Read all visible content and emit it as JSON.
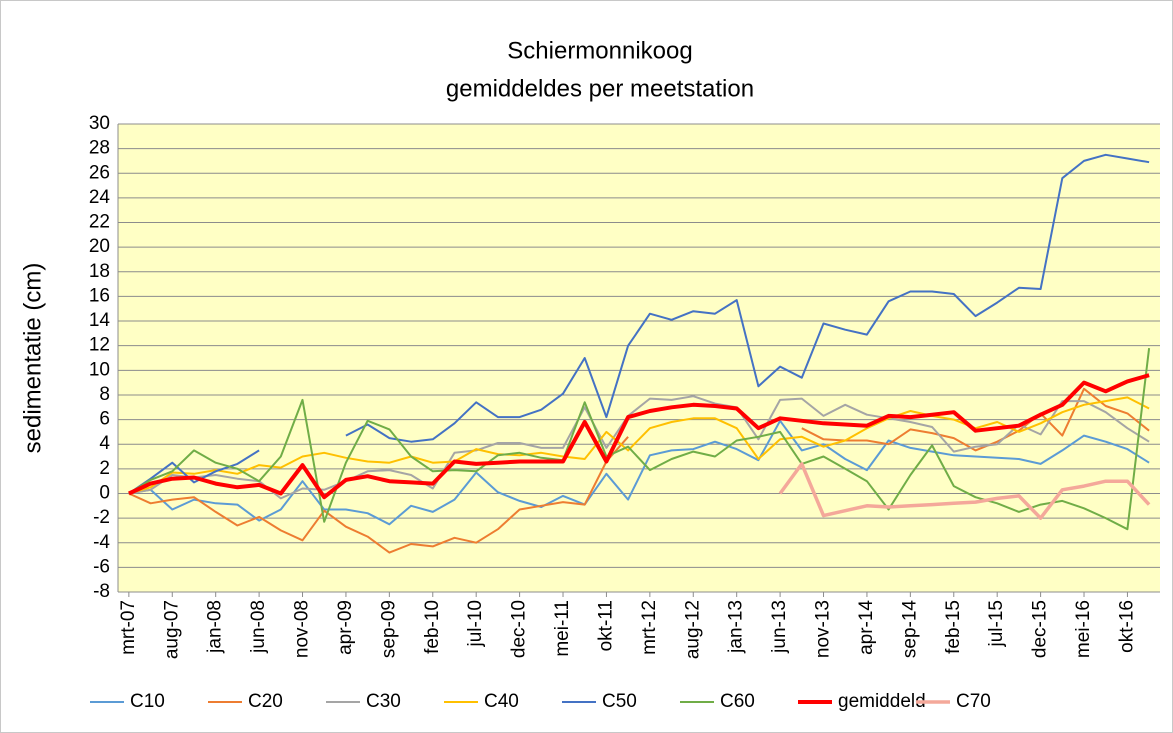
{
  "chart_data": {
    "type": "line",
    "title": "Schiermonnikoog",
    "subtitle": "gemiddeldes per meetstation",
    "y_label": "sedimentatie (cm)",
    "categories": [
      "mrt-07",
      null,
      "aug-07",
      null,
      "jan-08",
      null,
      "jun-08",
      null,
      "nov-08",
      null,
      "apr-09",
      null,
      "sep-09",
      null,
      "feb-10",
      null,
      "jul-10",
      null,
      "dec-10",
      null,
      "mei-11",
      null,
      "okt-11",
      null,
      "mrt-12",
      null,
      "aug-12",
      null,
      "jan-13",
      null,
      "jun-13",
      null,
      "nov-13",
      null,
      "apr-14",
      null,
      "sep-14",
      null,
      "feb-15",
      null,
      "jul-15",
      null,
      "dec-15",
      null,
      "mei-16",
      null,
      "okt-16",
      null
    ],
    "ylim": [
      -8,
      30
    ],
    "yticks": [
      -8,
      -6,
      -4,
      -2,
      0,
      2,
      4,
      6,
      8,
      10,
      12,
      14,
      16,
      18,
      20,
      22,
      24,
      26,
      28,
      30
    ],
    "grid": true,
    "series": [
      {
        "name": "C10",
        "color": "#5b9bd5",
        "linewidth": 2,
        "values": [
          0,
          0.3,
          -1.3,
          -0.5,
          -0.8,
          -0.9,
          -2.2,
          -1.3,
          1.0,
          -1.3,
          -1.3,
          -1.6,
          -2.5,
          -1.0,
          -1.5,
          -0.5,
          1.7,
          0.1,
          -0.6,
          -1.1,
          -0.2,
          -0.9,
          1.6,
          -0.5,
          3.1,
          3.5,
          3.6,
          4.2,
          3.6,
          2.7,
          5.9,
          3.5,
          4.0,
          2.8,
          1.9,
          4.3,
          3.7,
          3.4,
          3.1,
          3.0,
          2.9,
          2.8,
          2.4,
          3.5,
          4.7,
          4.2,
          3.6,
          2.5
        ]
      },
      {
        "name": "C20",
        "color": "#ed7d31",
        "linewidth": 2,
        "values": [
          0,
          -0.8,
          -0.5,
          -0.3,
          -1.5,
          -2.6,
          -1.9,
          -3.0,
          -3.8,
          -1.4,
          -2.7,
          -3.5,
          -4.8,
          -4.1,
          -4.3,
          -3.6,
          -4.0,
          -2.9,
          -1.3,
          -1.0,
          -0.7,
          -0.9,
          2.6,
          4.6,
          null,
          null,
          null,
          null,
          null,
          null,
          null,
          5.3,
          4.4,
          4.3,
          4.3,
          4.0,
          5.2,
          4.9,
          4.5,
          3.5,
          4.2,
          5.1,
          6.5,
          4.7,
          8.5,
          7.1,
          6.5,
          5.1
        ]
      },
      {
        "name": "C30",
        "color": "#a5a5a5",
        "linewidth": 2,
        "values": [
          0,
          0.3,
          1.5,
          1.3,
          1.5,
          1.2,
          1.0,
          -0.4,
          0.4,
          0.3,
          1.0,
          1.8,
          1.9,
          1.5,
          0.4,
          3.3,
          3.5,
          4.1,
          4.1,
          3.7,
          3.7,
          7.0,
          3.7,
          6.3,
          7.7,
          7.6,
          7.9,
          7.3,
          7.0,
          4.4,
          7.6,
          7.7,
          6.3,
          7.2,
          6.4,
          6.1,
          5.8,
          5.4,
          3.4,
          3.8,
          4.0,
          5.6,
          4.8,
          7.5,
          7.5,
          6.6,
          5.3,
          4.2
        ]
      },
      {
        "name": "C40",
        "color": "#ffc000",
        "linewidth": 2,
        "values": [
          0,
          0.5,
          1.7,
          1.6,
          1.9,
          1.6,
          2.3,
          2.1,
          3.0,
          3.3,
          2.9,
          2.6,
          2.5,
          3.0,
          2.5,
          2.6,
          3.6,
          3.2,
          3.1,
          3.3,
          3.0,
          2.8,
          5.0,
          3.5,
          5.3,
          5.8,
          6.1,
          6.1,
          5.3,
          2.8,
          4.4,
          4.6,
          3.8,
          4.3,
          5.3,
          6.1,
          6.7,
          6.3,
          6.0,
          5.3,
          5.8,
          5.0,
          5.7,
          6.6,
          7.2,
          7.5,
          7.8,
          6.9
        ]
      },
      {
        "name": "C50",
        "color": "#4472c4",
        "linewidth": 2,
        "values": [
          0,
          1.2,
          2.5,
          0.9,
          1.8,
          2.4,
          3.5,
          null,
          null,
          null,
          4.7,
          5.6,
          4.5,
          4.2,
          4.4,
          5.7,
          7.4,
          6.2,
          6.2,
          6.8,
          8.1,
          11.0,
          6.2,
          12.0,
          14.6,
          14.1,
          14.8,
          14.6,
          15.7,
          8.7,
          10.3,
          9.4,
          13.8,
          13.3,
          12.9,
          15.6,
          16.4,
          16.4,
          16.2,
          14.4,
          15.5,
          16.7,
          16.6,
          25.6,
          27.0,
          27.5,
          27.2,
          26.9
        ]
      },
      {
        "name": "C60",
        "color": "#70ad47",
        "linewidth": 2,
        "values": [
          0,
          1.1,
          1.8,
          3.5,
          2.5,
          2.0,
          1.0,
          3.0,
          7.6,
          -2.3,
          2.5,
          5.9,
          5.2,
          3.0,
          1.8,
          1.9,
          1.8,
          3.1,
          3.3,
          2.9,
          2.7,
          7.4,
          3.0,
          3.8,
          1.9,
          2.8,
          3.4,
          3.0,
          4.3,
          4.6,
          5.0,
          2.4,
          3.0,
          2.0,
          1.0,
          -1.3,
          1.5,
          3.9,
          0.6,
          -0.3,
          -0.8,
          -1.5,
          -0.9,
          -0.6,
          -1.2,
          -2.0,
          -2.9,
          11.8
        ]
      },
      {
        "name": "gemiddeld",
        "color": "#ff0000",
        "linewidth": 4,
        "values": [
          0,
          0.8,
          1.2,
          1.3,
          0.8,
          0.5,
          0.7,
          0,
          2.3,
          -0.3,
          1.1,
          1.4,
          1.0,
          0.9,
          0.8,
          2.6,
          2.4,
          2.5,
          2.6,
          2.6,
          2.6,
          5.8,
          2.6,
          6.2,
          6.7,
          7.0,
          7.2,
          7.1,
          6.9,
          5.3,
          6.1,
          5.9,
          5.7,
          5.6,
          5.5,
          6.3,
          6.2,
          6.4,
          6.6,
          5.1,
          5.3,
          5.5,
          6.4,
          7.2,
          9.0,
          8.3,
          9.1,
          9.6
        ]
      },
      {
        "name": "C70",
        "color": "#f4a89a",
        "linewidth": 3.5,
        "values": [
          null,
          null,
          null,
          null,
          null,
          null,
          null,
          null,
          null,
          null,
          null,
          null,
          null,
          null,
          null,
          null,
          null,
          null,
          null,
          null,
          null,
          null,
          null,
          null,
          null,
          null,
          null,
          null,
          null,
          null,
          0,
          2.4,
          -1.8,
          -1.4,
          -1.0,
          -1.1,
          -1.0,
          -0.9,
          -0.8,
          -0.7,
          -0.4,
          -0.2,
          -2.0,
          0.3,
          0.6,
          1.0,
          1.0,
          -0.9
        ]
      }
    ]
  }
}
